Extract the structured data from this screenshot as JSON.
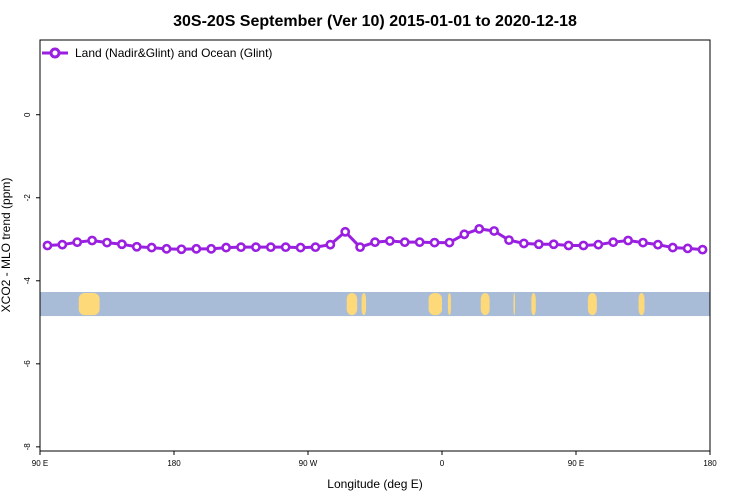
{
  "chart_data": {
    "type": "line",
    "title": "30S-20S September (Ver 10)   2015-01-01 to 2020-12-18",
    "xlabel": "Longitude (deg E)",
    "ylabel": "XCO2 - MLO trend (ppm)",
    "xlim": [
      90,
      540
    ],
    "ylim": [
      -8.1,
      1.8
    ],
    "x_ticks": [
      {
        "value": 90,
        "label": "90 E"
      },
      {
        "value": 180,
        "label": "180"
      },
      {
        "value": 270,
        "label": "90 W"
      },
      {
        "value": 360,
        "label": "0"
      },
      {
        "value": 450,
        "label": "90 E"
      },
      {
        "value": 540,
        "label": "180"
      }
    ],
    "y_ticks": [
      {
        "value": 0,
        "label": "0"
      },
      {
        "value": -2,
        "label": "-2"
      },
      {
        "value": -4,
        "label": "-4"
      },
      {
        "value": -6,
        "label": "-6"
      },
      {
        "value": -8,
        "label": "-8"
      }
    ],
    "grid": false,
    "legend_position": "top-left",
    "series": [
      {
        "name": "Land (Nadir&Glint) and Ocean (Glint)",
        "color": "#9a1fe0",
        "marker": "open-circle",
        "x": [
          95,
          105,
          115,
          125,
          135,
          145,
          155,
          165,
          175,
          185,
          195,
          205,
          215,
          225,
          235,
          245,
          255,
          265,
          275,
          285,
          295,
          305,
          315,
          325,
          335,
          345,
          355,
          365,
          375,
          385,
          395,
          405,
          415,
          425,
          435,
          445,
          455,
          465,
          475,
          485,
          495,
          505,
          515,
          525,
          535
        ],
        "y": [
          -3.15,
          -3.13,
          -3.07,
          -3.03,
          -3.08,
          -3.12,
          -3.18,
          -3.2,
          -3.23,
          -3.24,
          -3.23,
          -3.23,
          -3.2,
          -3.19,
          -3.19,
          -3.19,
          -3.19,
          -3.2,
          -3.19,
          -3.13,
          -2.82,
          -3.19,
          -3.07,
          -3.04,
          -3.07,
          -3.07,
          -3.08,
          -3.08,
          -2.88,
          -2.75,
          -2.8,
          -3.02,
          -3.1,
          -3.12,
          -3.12,
          -3.15,
          -3.15,
          -3.13,
          -3.07,
          -3.03,
          -3.08,
          -3.13,
          -3.2,
          -3.22,
          -3.25
        ]
      }
    ],
    "land_ocean_band": {
      "y_range": [
        -4.27,
        -4.85
      ],
      "ocean_color": "#a8bcd8",
      "land_color": "#fdd97a",
      "land_segments": [
        {
          "start": 116,
          "end": 130
        },
        {
          "start": 296,
          "end": 303
        },
        {
          "start": 306,
          "end": 309
        },
        {
          "start": 351,
          "end": 360
        },
        {
          "start": 364,
          "end": 366
        },
        {
          "start": 386,
          "end": 392
        },
        {
          "start": 408,
          "end": 409
        },
        {
          "start": 420,
          "end": 423
        },
        {
          "start": 458,
          "end": 464
        },
        {
          "start": 492,
          "end": 496
        }
      ]
    }
  }
}
